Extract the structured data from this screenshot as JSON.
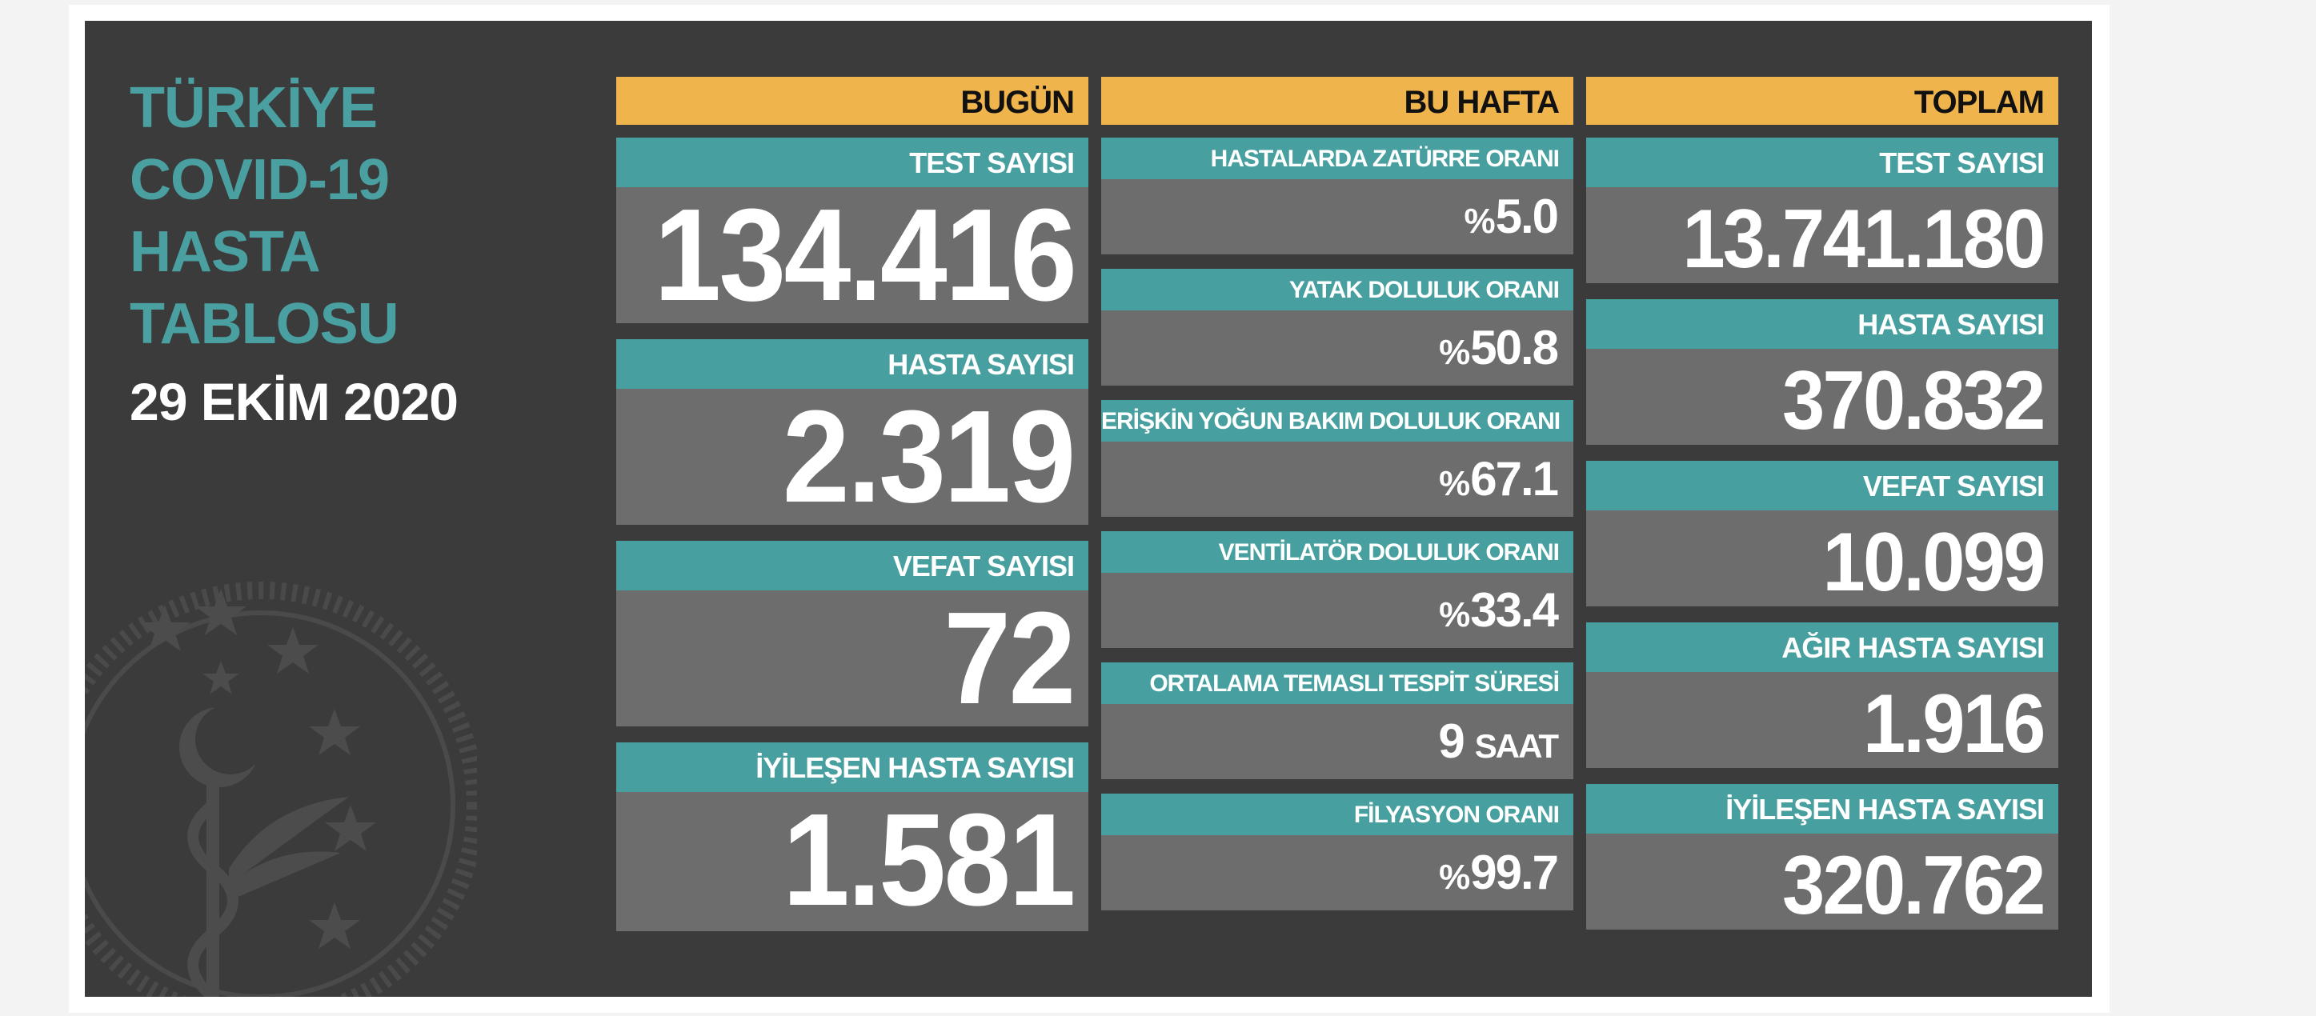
{
  "dashboard": {
    "title_lines": [
      "TÜRKİYE",
      "COVID-19",
      "HASTA",
      "TABLOSU"
    ],
    "date": "29 EKİM 2020",
    "emblem": "ministry-of-health-emblem",
    "colors": {
      "background": "#3b3b3b",
      "header": "#f0b44c",
      "label": "#47a09f",
      "card": "#6d6d6d",
      "title": "#4a9fa0"
    }
  },
  "today": {
    "header": "BUGÜN",
    "cards": [
      {
        "label": "TEST SAYISI",
        "value": "134.416"
      },
      {
        "label": "HASTA SAYISI",
        "value": "2.319"
      },
      {
        "label": "VEFAT SAYISI",
        "value": "72"
      },
      {
        "label": "İYİLEŞEN HASTA SAYISI",
        "value": "1.581"
      }
    ]
  },
  "this_week": {
    "header": "BU HAFTA",
    "percent_sign": "%",
    "cards": [
      {
        "label": "HASTALARDA ZATÜRRE ORANI",
        "value": "5.0"
      },
      {
        "label": "YATAK DOLULUK ORANI",
        "value": "50.8"
      },
      {
        "label": "ERİŞKİN YOĞUN BAKIM DOLULUK ORANI",
        "value": "67.1"
      },
      {
        "label": "VENTİLATÖR DOLULUK ORANI",
        "value": "33.4"
      },
      {
        "label": "ORTALAMA TEMASLI TESPİT SÜRESİ",
        "value": "9",
        "unit": "SAAT"
      },
      {
        "label": "FİLYASYON ORANI",
        "value": "99.7"
      }
    ]
  },
  "total": {
    "header": "TOPLAM",
    "cards": [
      {
        "label": "TEST SAYISI",
        "value": "13.741.180"
      },
      {
        "label": "HASTA SAYISI",
        "value": "370.832"
      },
      {
        "label": "VEFAT SAYISI",
        "value": "10.099"
      },
      {
        "label": "AĞIR HASTA SAYISI",
        "value": "1.916"
      },
      {
        "label": "İYİLEŞEN HASTA SAYISI",
        "value": "320.762"
      }
    ]
  }
}
